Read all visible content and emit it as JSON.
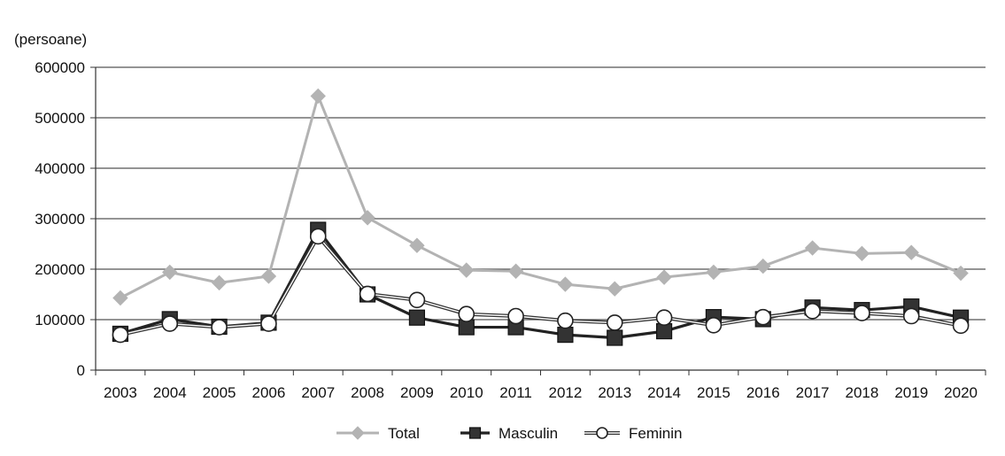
{
  "chart_data": {
    "type": "line",
    "unit_label": "(persoane)",
    "x": [
      "2003",
      "2004",
      "2005",
      "2006",
      "2007",
      "2008",
      "2009",
      "2010",
      "2011",
      "2012",
      "2013",
      "2014",
      "2015",
      "2016",
      "2017",
      "2018",
      "2019",
      "2020"
    ],
    "ylim": [
      0,
      600000
    ],
    "yticks": [
      0,
      100000,
      200000,
      300000,
      400000,
      500000,
      600000
    ],
    "grid": true,
    "legend_position": "bottom",
    "series": [
      {
        "name": "Total",
        "marker": "diamond",
        "color": "#b3b3b3",
        "values": [
          143000,
          194000,
          173000,
          186000,
          543000,
          302000,
          247000,
          198000,
          196000,
          170000,
          161000,
          184000,
          194000,
          206000,
          242000,
          231000,
          233000,
          192000
        ]
      },
      {
        "name": "Masculin",
        "marker": "square",
        "color": "#222222",
        "values": [
          72000,
          101000,
          86000,
          94000,
          278000,
          150000,
          104000,
          85000,
          85000,
          70000,
          64000,
          77000,
          105000,
          101000,
          124000,
          119000,
          126000,
          104000
        ]
      },
      {
        "name": "Feminin",
        "marker": "circle",
        "color": "#444444",
        "values": [
          70000,
          92000,
          85000,
          92000,
          265000,
          151000,
          139000,
          111000,
          107000,
          98000,
          94000,
          104000,
          89000,
          105000,
          117000,
          113000,
          107000,
          88000
        ]
      }
    ]
  }
}
